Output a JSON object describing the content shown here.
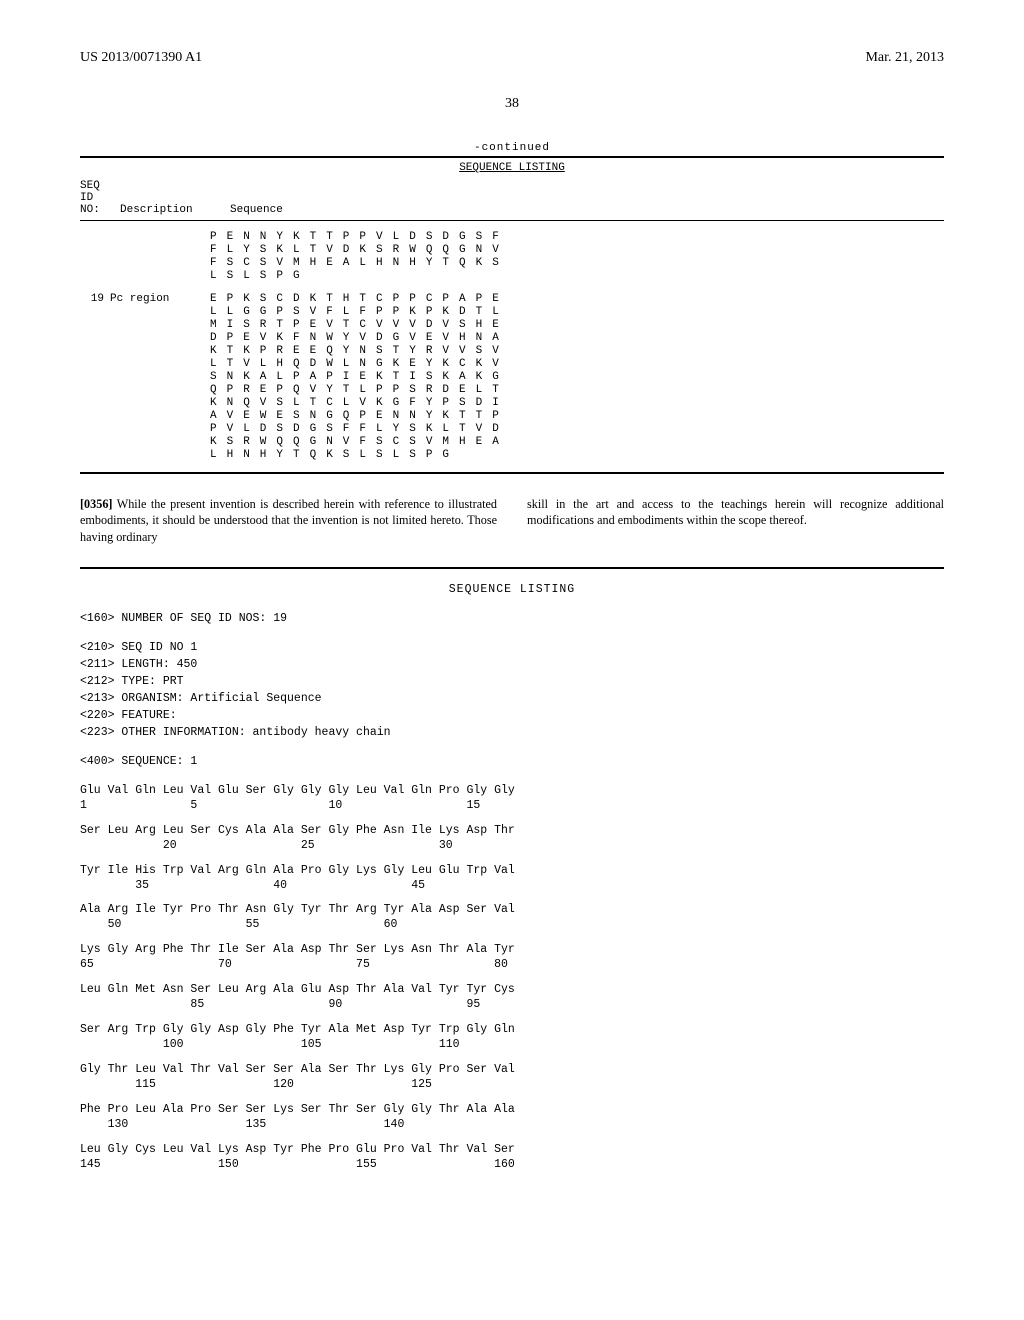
{
  "header": {
    "pub_no": "US 2013/0071390 A1",
    "pub_date": "Mar. 21, 2013",
    "page": "38"
  },
  "top_table": {
    "continued": "-continued",
    "title": "SEQUENCE LISTING",
    "col1_a": "SEQ",
    "col1_b": "ID",
    "col1_c": "NO:",
    "col2": "Description",
    "col3": "Sequence",
    "block1": {
      "r1": "PENNYKTTPPVLDSDGSF",
      "r2": "FLYSKLTVDKSRWQQGNV",
      "r3": "FSCSVMHEALHNHYTQKS",
      "r4": "LSLSPG"
    },
    "entry19": {
      "id": "19",
      "desc": "Pc region",
      "r1": "EPKSCDKTHTCPPCPAPE",
      "r2": "LLGGPSVFLFPPKPKDTL",
      "r3": "MISRTPEVTCVVVDVSHE",
      "r4": "DPEVKFNWYVDGVEVHNA",
      "r5": "KTKPREEQYNSTYRVVSV",
      "r6": "LTVLHQDWLNGKEYKCKV",
      "r7": "SNKALPAPIEKTISKAKG",
      "r8": "QPREPQVYTLPPSRDELT",
      "r9": "KNQVSLTCLVKGFYPSDI",
      "r10": "AVEWESNGQPENNYKTTP",
      "r11": "PVLDSDGSFFLYSKLTVD",
      "r12": "KSRWQQGNVFSCSVMHEA",
      "r13": "LHNHYTQKSLSLSPG"
    }
  },
  "paragraph": {
    "num": "[0356]",
    "left": "While the present invention is described herein with reference to illustrated embodiments, it should be understood that the invention is not limited hereto. Those having ordinary",
    "right": "skill in the art and access to the teachings herein will recognize additional modifications and embodiments within the scope thereof."
  },
  "listing": {
    "title": "SEQUENCE LISTING",
    "meta160": "<160> NUMBER OF SEQ ID NOS: 19",
    "meta210": "<210> SEQ ID NO 1",
    "meta211": "<211> LENGTH: 450",
    "meta212": "<212> TYPE: PRT",
    "meta213": "<213> ORGANISM: Artificial Sequence",
    "meta220": "<220> FEATURE:",
    "meta223": "<223> OTHER INFORMATION: antibody heavy chain",
    "meta400": "<400> SEQUENCE: 1",
    "rows": [
      {
        "aa": "Glu Val Gln Leu Val Glu Ser Gly Gly Gly Leu Val Gln Pro Gly Gly",
        "nums": "1               5                   10                  15"
      },
      {
        "aa": "Ser Leu Arg Leu Ser Cys Ala Ala Ser Gly Phe Asn Ile Lys Asp Thr",
        "nums": "            20                  25                  30"
      },
      {
        "aa": "Tyr Ile His Trp Val Arg Gln Ala Pro Gly Lys Gly Leu Glu Trp Val",
        "nums": "        35                  40                  45"
      },
      {
        "aa": "Ala Arg Ile Tyr Pro Thr Asn Gly Tyr Thr Arg Tyr Ala Asp Ser Val",
        "nums": "    50                  55                  60"
      },
      {
        "aa": "Lys Gly Arg Phe Thr Ile Ser Ala Asp Thr Ser Lys Asn Thr Ala Tyr",
        "nums": "65                  70                  75                  80"
      },
      {
        "aa": "Leu Gln Met Asn Ser Leu Arg Ala Glu Asp Thr Ala Val Tyr Tyr Cys",
        "nums": "                85                  90                  95"
      },
      {
        "aa": "Ser Arg Trp Gly Gly Asp Gly Phe Tyr Ala Met Asp Tyr Trp Gly Gln",
        "nums": "            100                 105                 110"
      },
      {
        "aa": "Gly Thr Leu Val Thr Val Ser Ser Ala Ser Thr Lys Gly Pro Ser Val",
        "nums": "        115                 120                 125"
      },
      {
        "aa": "Phe Pro Leu Ala Pro Ser Ser Lys Ser Thr Ser Gly Gly Thr Ala Ala",
        "nums": "    130                 135                 140"
      },
      {
        "aa": "Leu Gly Cys Leu Val Lys Asp Tyr Phe Pro Glu Pro Val Thr Val Ser",
        "nums": "145                 150                 155                 160"
      }
    ]
  }
}
